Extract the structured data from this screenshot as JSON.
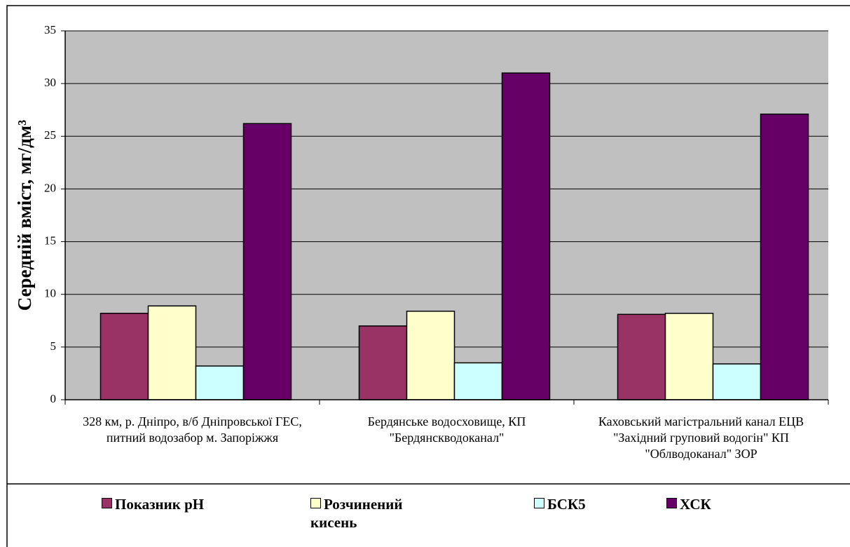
{
  "chart_data": {
    "type": "bar",
    "y_label": "Середній вміст, мг/дм³",
    "categories": [
      "328 км, р. Дніпро, в/б Дніпровської ГЕС, питний водозабор м. Запоріжжя",
      "Бердянське водосховище, КП \"Бердянскводоканал\"",
      "Каховський магістральний канал ЕЦВ  \"Західний груповий водогін\" КП \"Облводоканал\" ЗОР"
    ],
    "series": [
      {
        "name": "Показник pH",
        "color": "#993366",
        "values": [
          8.2,
          7.0,
          8.1
        ]
      },
      {
        "name": "Розчинений кисень",
        "color": "#ffffcc",
        "values": [
          8.9,
          8.4,
          8.2
        ]
      },
      {
        "name": "БСК5",
        "color": "#ccffff",
        "values": [
          3.2,
          3.5,
          3.4
        ]
      },
      {
        "name": "ХСК",
        "color": "#660066",
        "values": [
          26.2,
          31.0,
          27.1
        ]
      }
    ],
    "ylim": [
      0,
      35
    ],
    "yticks": [
      0,
      5,
      10,
      15,
      20,
      25,
      30,
      35
    ],
    "grid": true,
    "plot_background": "#c0c0c0"
  }
}
